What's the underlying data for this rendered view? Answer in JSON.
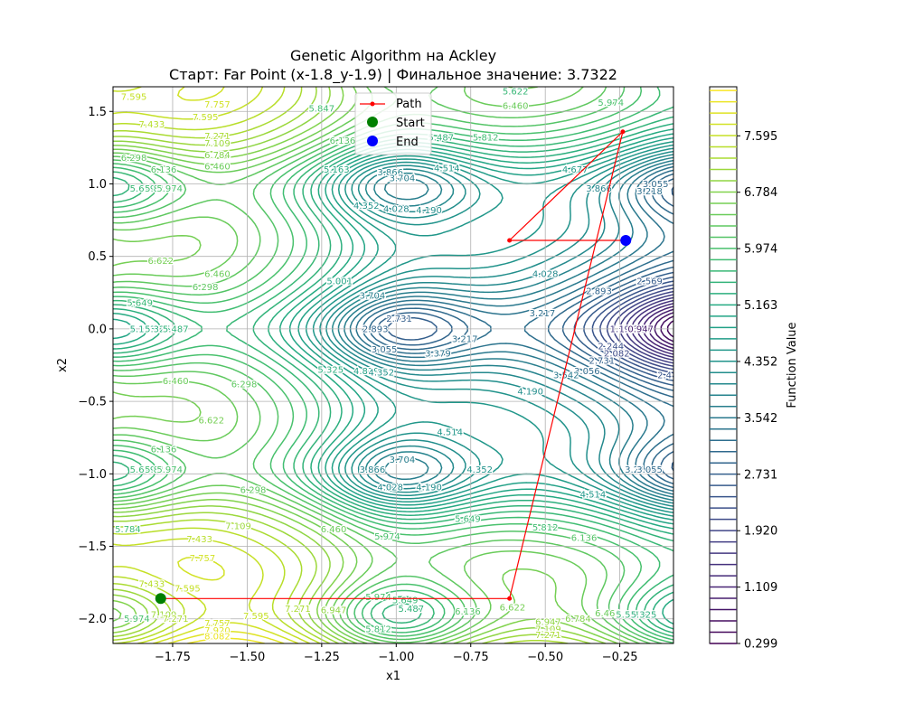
{
  "chart_data": {
    "type": "contour",
    "title": "Genetic Algorithm на Ackley",
    "subtitle": "Старт: Far Point (x-1.8_y-1.9) | Финальное значение: 3.7322",
    "xlabel": "x1",
    "ylabel": "x2",
    "xlim": [
      -1.95,
      -0.07
    ],
    "ylim": [
      -2.17,
      1.67
    ],
    "xticks": [
      -1.75,
      -1.5,
      -1.25,
      -1.0,
      -0.75,
      -0.5,
      -0.25
    ],
    "xtick_labels": [
      "−1.75",
      "−1.50",
      "−1.25",
      "−1.00",
      "−0.75",
      "−0.50",
      "−0.25"
    ],
    "yticks": [
      -2.0,
      -1.5,
      -1.0,
      -0.5,
      0.0,
      0.5,
      1.0,
      1.5
    ],
    "ytick_labels": [
      "−2.0",
      "−1.5",
      "−1.0",
      "−0.5",
      "0.0",
      "0.5",
      "1.0",
      "1.5"
    ],
    "grid": true,
    "function": "Ackley",
    "colormap": "viridis",
    "colorbar": {
      "label": "Function Value",
      "range": [
        0.299,
        8.3
      ],
      "ticks": [
        0.299,
        1.109,
        1.92,
        2.731,
        3.542,
        4.352,
        5.163,
        5.974,
        6.784,
        7.595
      ],
      "tick_labels": [
        "0.299",
        "1.109",
        "1.920",
        "2.731",
        "3.542",
        "4.352",
        "5.163",
        "5.974",
        "6.784",
        "7.595"
      ]
    },
    "contour_levels": {
      "start": 0.299,
      "step": 0.1622,
      "count": 50
    },
    "contour_labels": [
      {
        "x": -1.88,
        "y": 1.6,
        "text": "7.595"
      },
      {
        "x": -1.6,
        "y": 1.55,
        "text": "7.757"
      },
      {
        "x": -1.82,
        "y": 1.41,
        "text": "7.433"
      },
      {
        "x": -1.64,
        "y": 1.46,
        "text": "7.595"
      },
      {
        "x": -1.6,
        "y": 1.33,
        "text": "7.271"
      },
      {
        "x": -1.6,
        "y": 1.28,
        "text": "7.109"
      },
      {
        "x": -1.6,
        "y": 1.2,
        "text": "6.784"
      },
      {
        "x": -1.6,
        "y": 1.12,
        "text": "6.460"
      },
      {
        "x": -1.88,
        "y": 1.18,
        "text": "6.298"
      },
      {
        "x": -1.78,
        "y": 1.1,
        "text": "6.136"
      },
      {
        "x": -1.85,
        "y": 0.97,
        "text": "5.649"
      },
      {
        "x": -1.8,
        "y": 0.97,
        "text": "5.812"
      },
      {
        "x": -1.76,
        "y": 0.97,
        "text": "5.974"
      },
      {
        "x": -1.79,
        "y": 0.47,
        "text": "6.622"
      },
      {
        "x": -1.6,
        "y": 0.38,
        "text": "6.460"
      },
      {
        "x": -1.64,
        "y": 0.29,
        "text": "6.298"
      },
      {
        "x": -1.86,
        "y": 0.18,
        "text": "5.649"
      },
      {
        "x": -1.85,
        "y": 0.0,
        "text": "5.163"
      },
      {
        "x": -1.8,
        "y": 0.0,
        "text": "5.325"
      },
      {
        "x": -1.74,
        "y": 0.0,
        "text": "5.487"
      },
      {
        "x": -1.74,
        "y": -0.36,
        "text": "6.460"
      },
      {
        "x": -1.62,
        "y": -0.63,
        "text": "6.622"
      },
      {
        "x": -1.51,
        "y": -0.38,
        "text": "6.298"
      },
      {
        "x": -1.78,
        "y": -0.83,
        "text": "6.136"
      },
      {
        "x": -1.85,
        "y": -0.97,
        "text": "5.649"
      },
      {
        "x": -1.8,
        "y": -0.97,
        "text": "5.812"
      },
      {
        "x": -1.76,
        "y": -0.97,
        "text": "5.974"
      },
      {
        "x": -1.48,
        "y": -1.11,
        "text": "6.298"
      },
      {
        "x": -1.9,
        "y": -1.38,
        "text": "5.784"
      },
      {
        "x": -1.53,
        "y": -1.36,
        "text": "7.109"
      },
      {
        "x": -1.66,
        "y": -1.45,
        "text": "7.433"
      },
      {
        "x": -1.65,
        "y": -1.58,
        "text": "7.757"
      },
      {
        "x": -1.82,
        "y": -1.76,
        "text": "7.433"
      },
      {
        "x": -1.7,
        "y": -1.79,
        "text": "7.595"
      },
      {
        "x": -1.78,
        "y": -1.97,
        "text": "7.109"
      },
      {
        "x": -1.74,
        "y": -2.0,
        "text": "7.271"
      },
      {
        "x": -1.87,
        "y": -2.0,
        "text": "5.974"
      },
      {
        "x": -1.6,
        "y": -2.03,
        "text": "7.757"
      },
      {
        "x": -1.6,
        "y": -2.08,
        "text": "7.920"
      },
      {
        "x": -1.6,
        "y": -2.12,
        "text": "8.082"
      },
      {
        "x": -1.47,
        "y": -1.98,
        "text": "7.595"
      },
      {
        "x": -1.33,
        "y": -1.93,
        "text": "7.271"
      },
      {
        "x": -1.21,
        "y": -1.94,
        "text": "6.947"
      },
      {
        "x": -1.21,
        "y": -1.38,
        "text": "6.460"
      },
      {
        "x": -1.03,
        "y": -1.43,
        "text": "5.974"
      },
      {
        "x": -0.76,
        "y": -1.31,
        "text": "5.649"
      },
      {
        "x": -0.5,
        "y": -1.37,
        "text": "5.812"
      },
      {
        "x": -0.37,
        "y": -1.44,
        "text": "6.136"
      },
      {
        "x": -1.06,
        "y": -1.85,
        "text": "5.974"
      },
      {
        "x": -0.97,
        "y": -1.87,
        "text": "5.649"
      },
      {
        "x": -0.95,
        "y": -1.93,
        "text": "5.487"
      },
      {
        "x": -1.06,
        "y": -2.07,
        "text": "5.812"
      },
      {
        "x": -0.76,
        "y": -1.95,
        "text": "6.136"
      },
      {
        "x": -0.61,
        "y": -1.92,
        "text": "6.622"
      },
      {
        "x": -0.49,
        "y": -2.02,
        "text": "6.947"
      },
      {
        "x": -0.49,
        "y": -2.07,
        "text": "7.109"
      },
      {
        "x": -0.49,
        "y": -2.11,
        "text": "7.271"
      },
      {
        "x": -0.39,
        "y": -2.0,
        "text": "6.784"
      },
      {
        "x": -0.29,
        "y": -1.96,
        "text": "6.460"
      },
      {
        "x": -0.22,
        "y": -1.97,
        "text": "5.649"
      },
      {
        "x": -0.19,
        "y": -1.97,
        "text": "5.487"
      },
      {
        "x": -0.17,
        "y": -1.97,
        "text": "5.325"
      },
      {
        "x": -1.25,
        "y": 1.52,
        "text": "5.847"
      },
      {
        "x": -1.18,
        "y": 1.3,
        "text": "6.136"
      },
      {
        "x": -1.2,
        "y": 1.1,
        "text": "5.163"
      },
      {
        "x": -0.6,
        "y": 1.64,
        "text": "5.622"
      },
      {
        "x": -0.6,
        "y": 1.54,
        "text": "6.460"
      },
      {
        "x": -0.7,
        "y": 1.32,
        "text": "5.812"
      },
      {
        "x": -0.85,
        "y": 1.32,
        "text": "5.487"
      },
      {
        "x": -0.83,
        "y": 1.11,
        "text": "4.514"
      },
      {
        "x": -1.02,
        "y": 1.08,
        "text": "3.866"
      },
      {
        "x": -0.98,
        "y": 1.04,
        "text": "3.704"
      },
      {
        "x": -1.1,
        "y": 0.85,
        "text": "4.352"
      },
      {
        "x": -1.0,
        "y": 0.83,
        "text": "4.028"
      },
      {
        "x": -0.89,
        "y": 0.82,
        "text": "4.190"
      },
      {
        "x": -0.28,
        "y": 1.56,
        "text": "5.974"
      },
      {
        "x": -0.4,
        "y": 1.1,
        "text": "4.677"
      },
      {
        "x": -0.32,
        "y": 0.97,
        "text": "3.866"
      },
      {
        "x": -0.15,
        "y": 0.95,
        "text": "3.218"
      },
      {
        "x": -0.13,
        "y": 1.0,
        "text": "3.055"
      },
      {
        "x": -1.19,
        "y": 0.33,
        "text": "5.001"
      },
      {
        "x": -1.08,
        "y": 0.23,
        "text": "3.704"
      },
      {
        "x": -0.99,
        "y": 0.07,
        "text": "2.731"
      },
      {
        "x": -1.07,
        "y": 0.0,
        "text": "2.893"
      },
      {
        "x": -1.04,
        "y": -0.14,
        "text": "3.055"
      },
      {
        "x": -0.86,
        "y": -0.17,
        "text": "3.379"
      },
      {
        "x": -0.77,
        "y": -0.07,
        "text": "3.217"
      },
      {
        "x": -0.5,
        "y": 0.38,
        "text": "4.028"
      },
      {
        "x": -0.51,
        "y": 0.11,
        "text": "3.217"
      },
      {
        "x": -0.32,
        "y": 0.26,
        "text": "2.893"
      },
      {
        "x": -0.15,
        "y": 0.33,
        "text": "2.569"
      },
      {
        "x": -0.24,
        "y": 0.0,
        "text": "1.596"
      },
      {
        "x": -0.21,
        "y": 0.0,
        "text": "1.434"
      },
      {
        "x": -0.18,
        "y": 0.0,
        "text": "0.947"
      },
      {
        "x": -0.28,
        "y": -0.12,
        "text": "2.244"
      },
      {
        "x": -0.26,
        "y": -0.17,
        "text": "2.082"
      },
      {
        "x": -0.31,
        "y": -0.22,
        "text": "2.731"
      },
      {
        "x": -0.36,
        "y": -0.29,
        "text": "3.056"
      },
      {
        "x": -0.43,
        "y": -0.32,
        "text": "3.542"
      },
      {
        "x": -0.1,
        "y": -0.32,
        "text": "2.4"
      },
      {
        "x": -1.22,
        "y": -0.28,
        "text": "5.325"
      },
      {
        "x": -1.1,
        "y": -0.29,
        "text": "4.839"
      },
      {
        "x": -1.05,
        "y": -0.3,
        "text": "4.352"
      },
      {
        "x": -0.55,
        "y": -0.43,
        "text": "4.190"
      },
      {
        "x": -0.82,
        "y": -0.71,
        "text": "4.514"
      },
      {
        "x": -1.08,
        "y": -0.97,
        "text": "3.866"
      },
      {
        "x": -0.98,
        "y": -0.9,
        "text": "3.704"
      },
      {
        "x": -1.02,
        "y": -1.09,
        "text": "4.028"
      },
      {
        "x": -0.89,
        "y": -1.09,
        "text": "4.190"
      },
      {
        "x": -0.72,
        "y": -0.97,
        "text": "4.352"
      },
      {
        "x": -0.34,
        "y": -1.14,
        "text": "4.514"
      },
      {
        "x": -0.19,
        "y": -0.97,
        "text": "3.217"
      },
      {
        "x": -0.15,
        "y": -0.97,
        "text": "3.055"
      }
    ],
    "series": [
      {
        "name": "Path",
        "color": "#ff0000",
        "x": [
          -1.79,
          -0.62,
          -0.24,
          -0.62,
          -0.23
        ],
        "y": [
          -1.86,
          -1.86,
          1.36,
          0.61,
          0.61
        ]
      }
    ],
    "markers": [
      {
        "name": "Start",
        "x": -1.79,
        "y": -1.86,
        "color": "#008000"
      },
      {
        "name": "End",
        "x": -0.23,
        "y": 0.61,
        "color": "#0000ff"
      }
    ],
    "legend": {
      "placement": "top-center",
      "entries": [
        {
          "label": "Path",
          "color": "#ff0000",
          "kind": "line"
        },
        {
          "label": "Start",
          "color": "#008000",
          "kind": "dot"
        },
        {
          "label": "End",
          "color": "#0000ff",
          "kind": "dot"
        }
      ]
    }
  }
}
